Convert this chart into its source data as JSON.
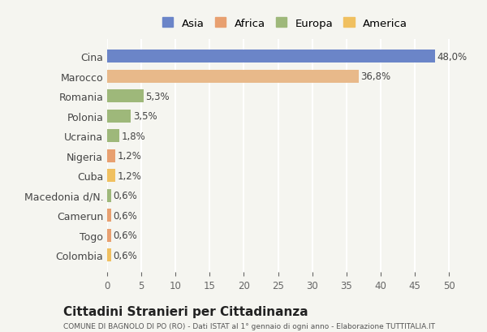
{
  "categories": [
    "Cina",
    "Marocco",
    "Romania",
    "Polonia",
    "Ucraina",
    "Nigeria",
    "Cuba",
    "Macedonia d/N.",
    "Camerun",
    "Togo",
    "Colombia"
  ],
  "values": [
    48.0,
    36.8,
    5.3,
    3.5,
    1.8,
    1.2,
    1.2,
    0.6,
    0.6,
    0.6,
    0.6
  ],
  "labels": [
    "48,0%",
    "36,8%",
    "5,3%",
    "3,5%",
    "1,8%",
    "1,2%",
    "1,2%",
    "0,6%",
    "0,6%",
    "0,6%",
    "0,6%"
  ],
  "colors": [
    "#6b85c8",
    "#e8b98a",
    "#9eb87a",
    "#9eb87a",
    "#9eb87a",
    "#e8a070",
    "#f0c060",
    "#9eb87a",
    "#e8a070",
    "#e8a070",
    "#f0c060"
  ],
  "legend_labels": [
    "Asia",
    "Africa",
    "Europa",
    "America"
  ],
  "legend_colors": [
    "#6b85c8",
    "#e8a070",
    "#9eb87a",
    "#f0c060"
  ],
  "xlim": [
    0,
    52
  ],
  "xticks": [
    0,
    5,
    10,
    15,
    20,
    25,
    30,
    35,
    40,
    45,
    50
  ],
  "title": "Cittadini Stranieri per Cittadinanza",
  "subtitle": "COMUNE DI BAGNOLO DI PO (RO) - Dati ISTAT al 1° gennaio di ogni anno - Elaborazione TUTTITALIA.IT",
  "background_color": "#f5f5f0",
  "bar_height": 0.65,
  "grid_color": "#ffffff"
}
